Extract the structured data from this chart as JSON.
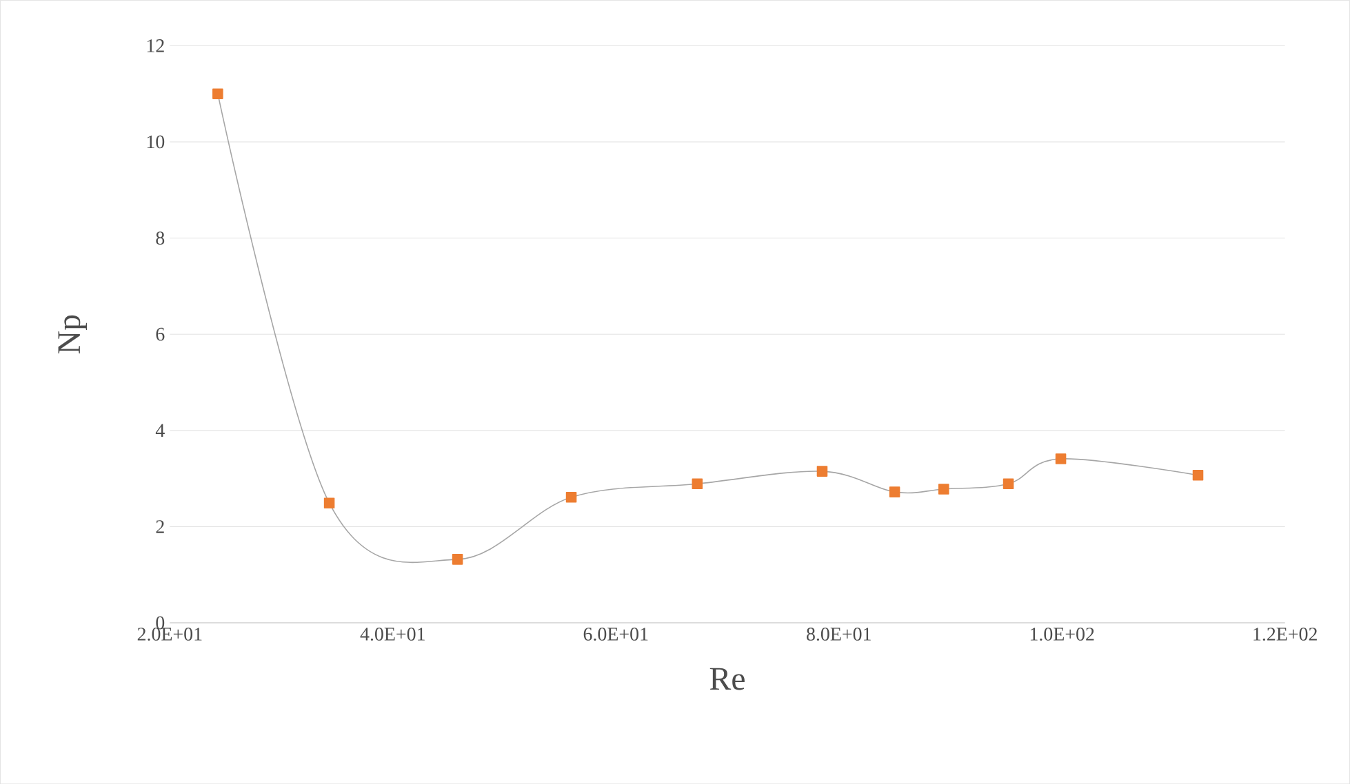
{
  "chart_data": {
    "type": "line",
    "xlabel": "Re",
    "ylabel": "Np",
    "xlim": [
      20,
      120
    ],
    "xticks": [
      {
        "value": 20,
        "label": "2.0E+01"
      },
      {
        "value": 40,
        "label": "4.0E+01"
      },
      {
        "value": 60,
        "label": "6.0E+01"
      },
      {
        "value": 80,
        "label": "8.0E+01"
      },
      {
        "value": 100,
        "label": "1.0E+02"
      },
      {
        "value": 120,
        "label": "1.2E+02"
      }
    ],
    "ylim": [
      0,
      12
    ],
    "yticks": [
      0,
      2,
      4,
      6,
      8,
      10,
      12
    ],
    "grid": "y",
    "x": [
      24.3,
      34.3,
      45.8,
      56.0,
      67.3,
      78.5,
      85.0,
      89.4,
      95.2,
      99.9,
      112.2
    ],
    "series": [
      {
        "color": "#ed7d31",
        "marker": "square",
        "values": [
          11.0,
          2.49,
          1.32,
          2.61,
          2.89,
          3.15,
          2.72,
          2.78,
          2.89,
          3.41,
          3.07
        ]
      }
    ]
  }
}
